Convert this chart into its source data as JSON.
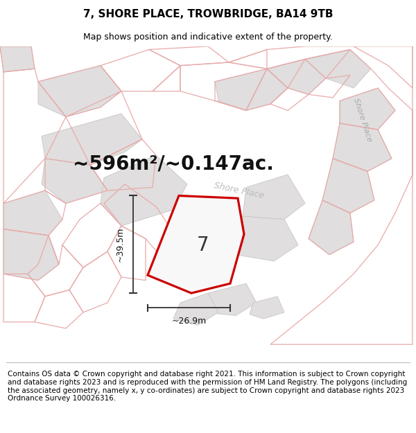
{
  "title": "7, SHORE PLACE, TROWBRIDGE, BA14 9TB",
  "subtitle": "Map shows position and indicative extent of the property.",
  "area_text": "~596m²/~0.147ac.",
  "property_number": "7",
  "dim_width": "~26.9m",
  "dim_height": "~39.5m",
  "footer": "Contains OS data © Crown copyright and database right 2021. This information is subject to Crown copyright and database rights 2023 and is reproduced with the permission of HM Land Registry. The polygons (including the associated geometry, namely x, y co-ordinates) are subject to Crown copyright and database rights 2023 Ordnance Survey 100026316.",
  "map_bg": "#f2f0f0",
  "gray_fill": "#e0dede",
  "white_fill": "#f8f7f7",
  "pink_stroke": "#e8aaaa",
  "red_stroke": "#cc0000",
  "gray_stroke": "#c8c5c5",
  "title_fontsize": 11,
  "subtitle_fontsize": 9,
  "area_fontsize": 20,
  "prop_num_fontsize": 20,
  "footer_fontsize": 7.5,
  "dim_fontsize": 9
}
